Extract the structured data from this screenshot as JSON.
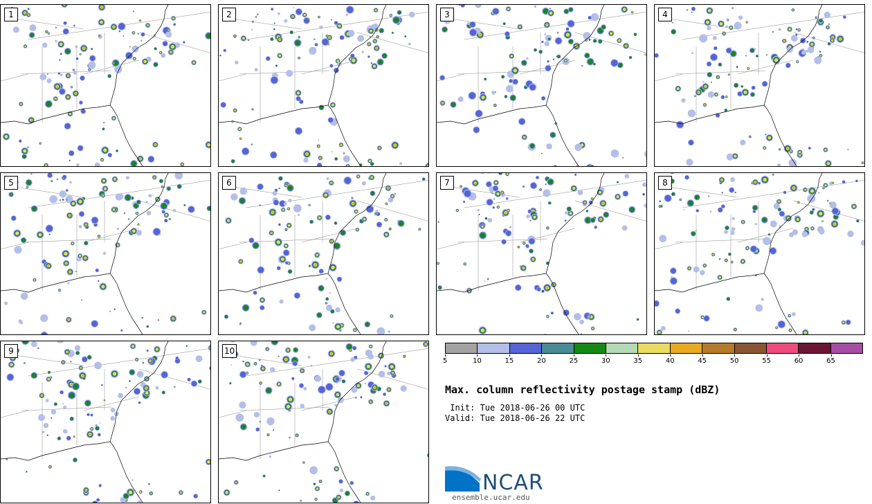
{
  "panels": [
    {
      "label": "1"
    },
    {
      "label": "2"
    },
    {
      "label": "3"
    },
    {
      "label": "4"
    },
    {
      "label": "5"
    },
    {
      "label": "6"
    },
    {
      "label": "7"
    },
    {
      "label": "8"
    },
    {
      "label": "9"
    },
    {
      "label": "10"
    }
  ],
  "colorbar": {
    "colors": [
      "#a3a3a3",
      "#b4bfe8",
      "#5564d6",
      "#4a8c95",
      "#148a14",
      "#b4d9b6",
      "#eadc63",
      "#e9aa22",
      "#b57b2d",
      "#8b5634",
      "#ef4b7c",
      "#6b1537",
      "#a64ea4"
    ],
    "ticks": [
      "5",
      "10",
      "15",
      "20",
      "25",
      "30",
      "35",
      "40",
      "45",
      "50",
      "55",
      "60",
      "65"
    ]
  },
  "title": "Max. column reflectivity postage stamp (dBZ)",
  "init": " Init: Tue 2018-06-26 00 UTC",
  "valid": "Valid: Tue 2018-06-26 22 UTC",
  "logo": {
    "text": "NCAR",
    "site": "ensemble.ucar.edu"
  }
}
